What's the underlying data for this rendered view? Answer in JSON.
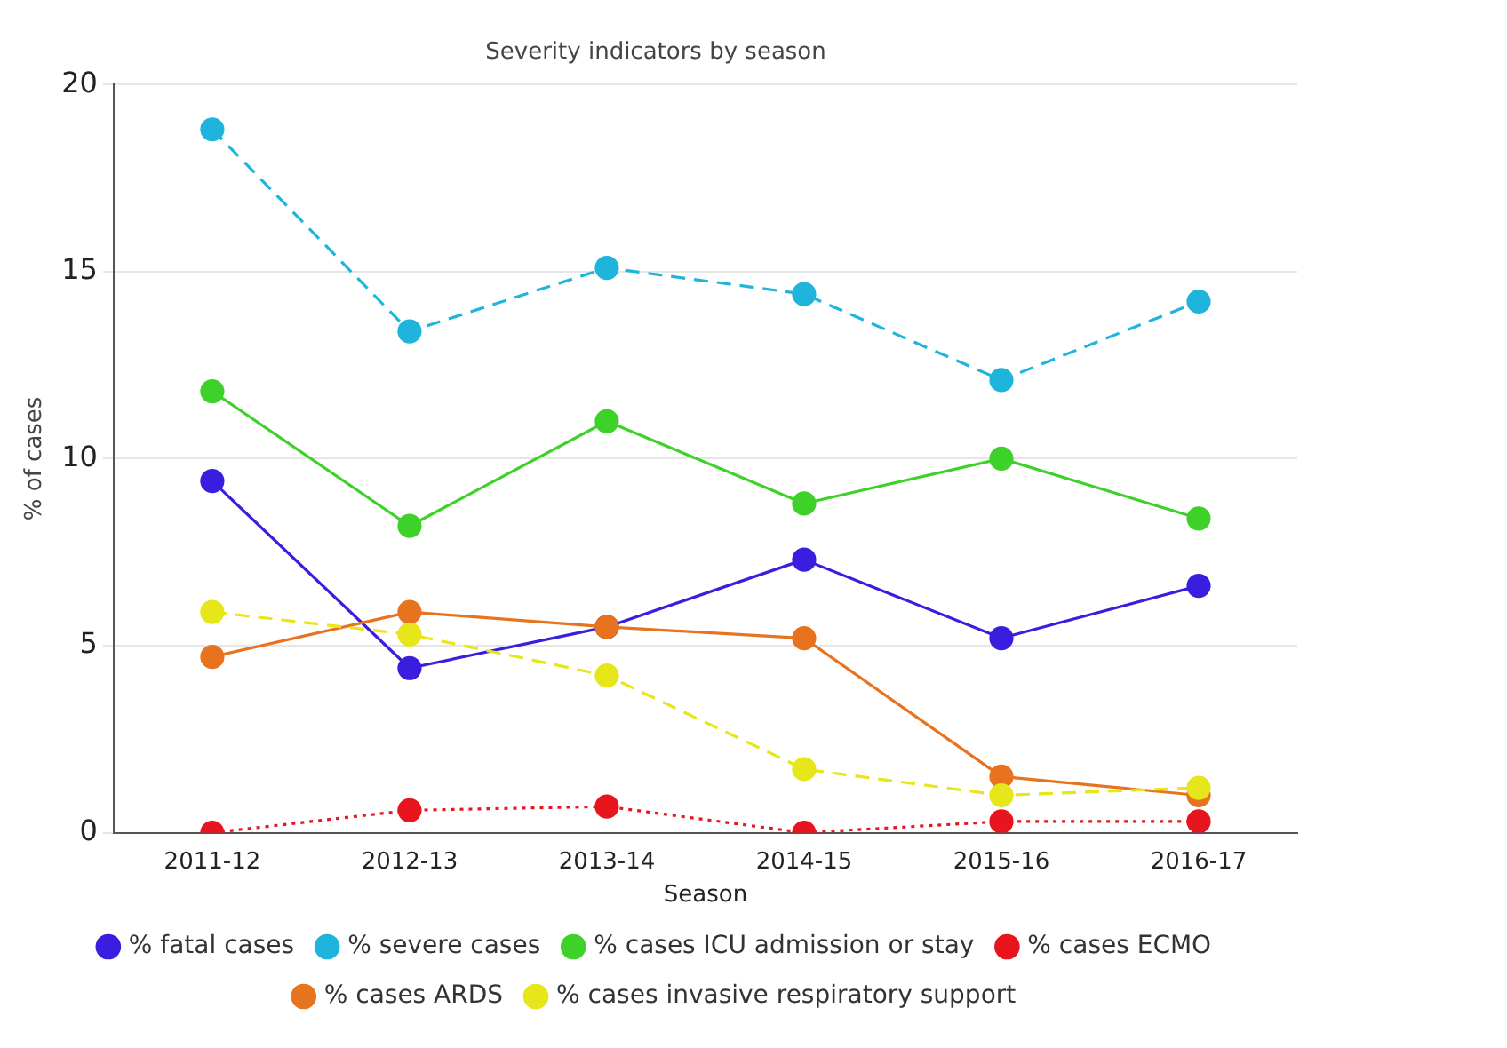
{
  "chart_data": {
    "type": "line",
    "title": "Severity indicators by season",
    "xlabel": "Season",
    "ylabel": "% of cases",
    "categories": [
      "2011-12",
      "2012-13",
      "2013-14",
      "2014-15",
      "2015-16",
      "2016-17"
    ],
    "series": [
      {
        "name": "% fatal cases",
        "color": "#3a1ee0",
        "line_style": "solid",
        "values": [
          9.4,
          4.4,
          5.5,
          7.3,
          5.2,
          6.6
        ]
      },
      {
        "name": "% severe cases",
        "color": "#1fb4dc",
        "line_style": "dashed",
        "values": [
          18.8,
          13.4,
          15.1,
          14.4,
          12.1,
          14.2
        ]
      },
      {
        "name": "% cases ICU admission or stay",
        "color": "#3ed12a",
        "line_style": "solid",
        "values": [
          11.8,
          8.2,
          11.0,
          8.8,
          10.0,
          8.4
        ]
      },
      {
        "name": "% cases ECMO",
        "color": "#e8141e",
        "line_style": "dotted",
        "values": [
          0.0,
          0.6,
          0.7,
          0.0,
          0.3,
          0.3
        ]
      },
      {
        "name": "% cases ARDS",
        "color": "#e8731e",
        "line_style": "solid",
        "values": [
          4.7,
          5.9,
          5.5,
          5.2,
          1.5,
          1.0
        ]
      },
      {
        "name": "% cases invasive respiratory support",
        "color": "#e6e61a",
        "line_style": "dashed",
        "values": [
          5.9,
          5.3,
          4.2,
          1.7,
          1.0,
          1.2
        ]
      }
    ],
    "ylim": [
      0,
      20
    ],
    "yticks": [
      0,
      5,
      10,
      15,
      20
    ],
    "grid": "y",
    "legend": "bottom",
    "marker": "circle"
  }
}
